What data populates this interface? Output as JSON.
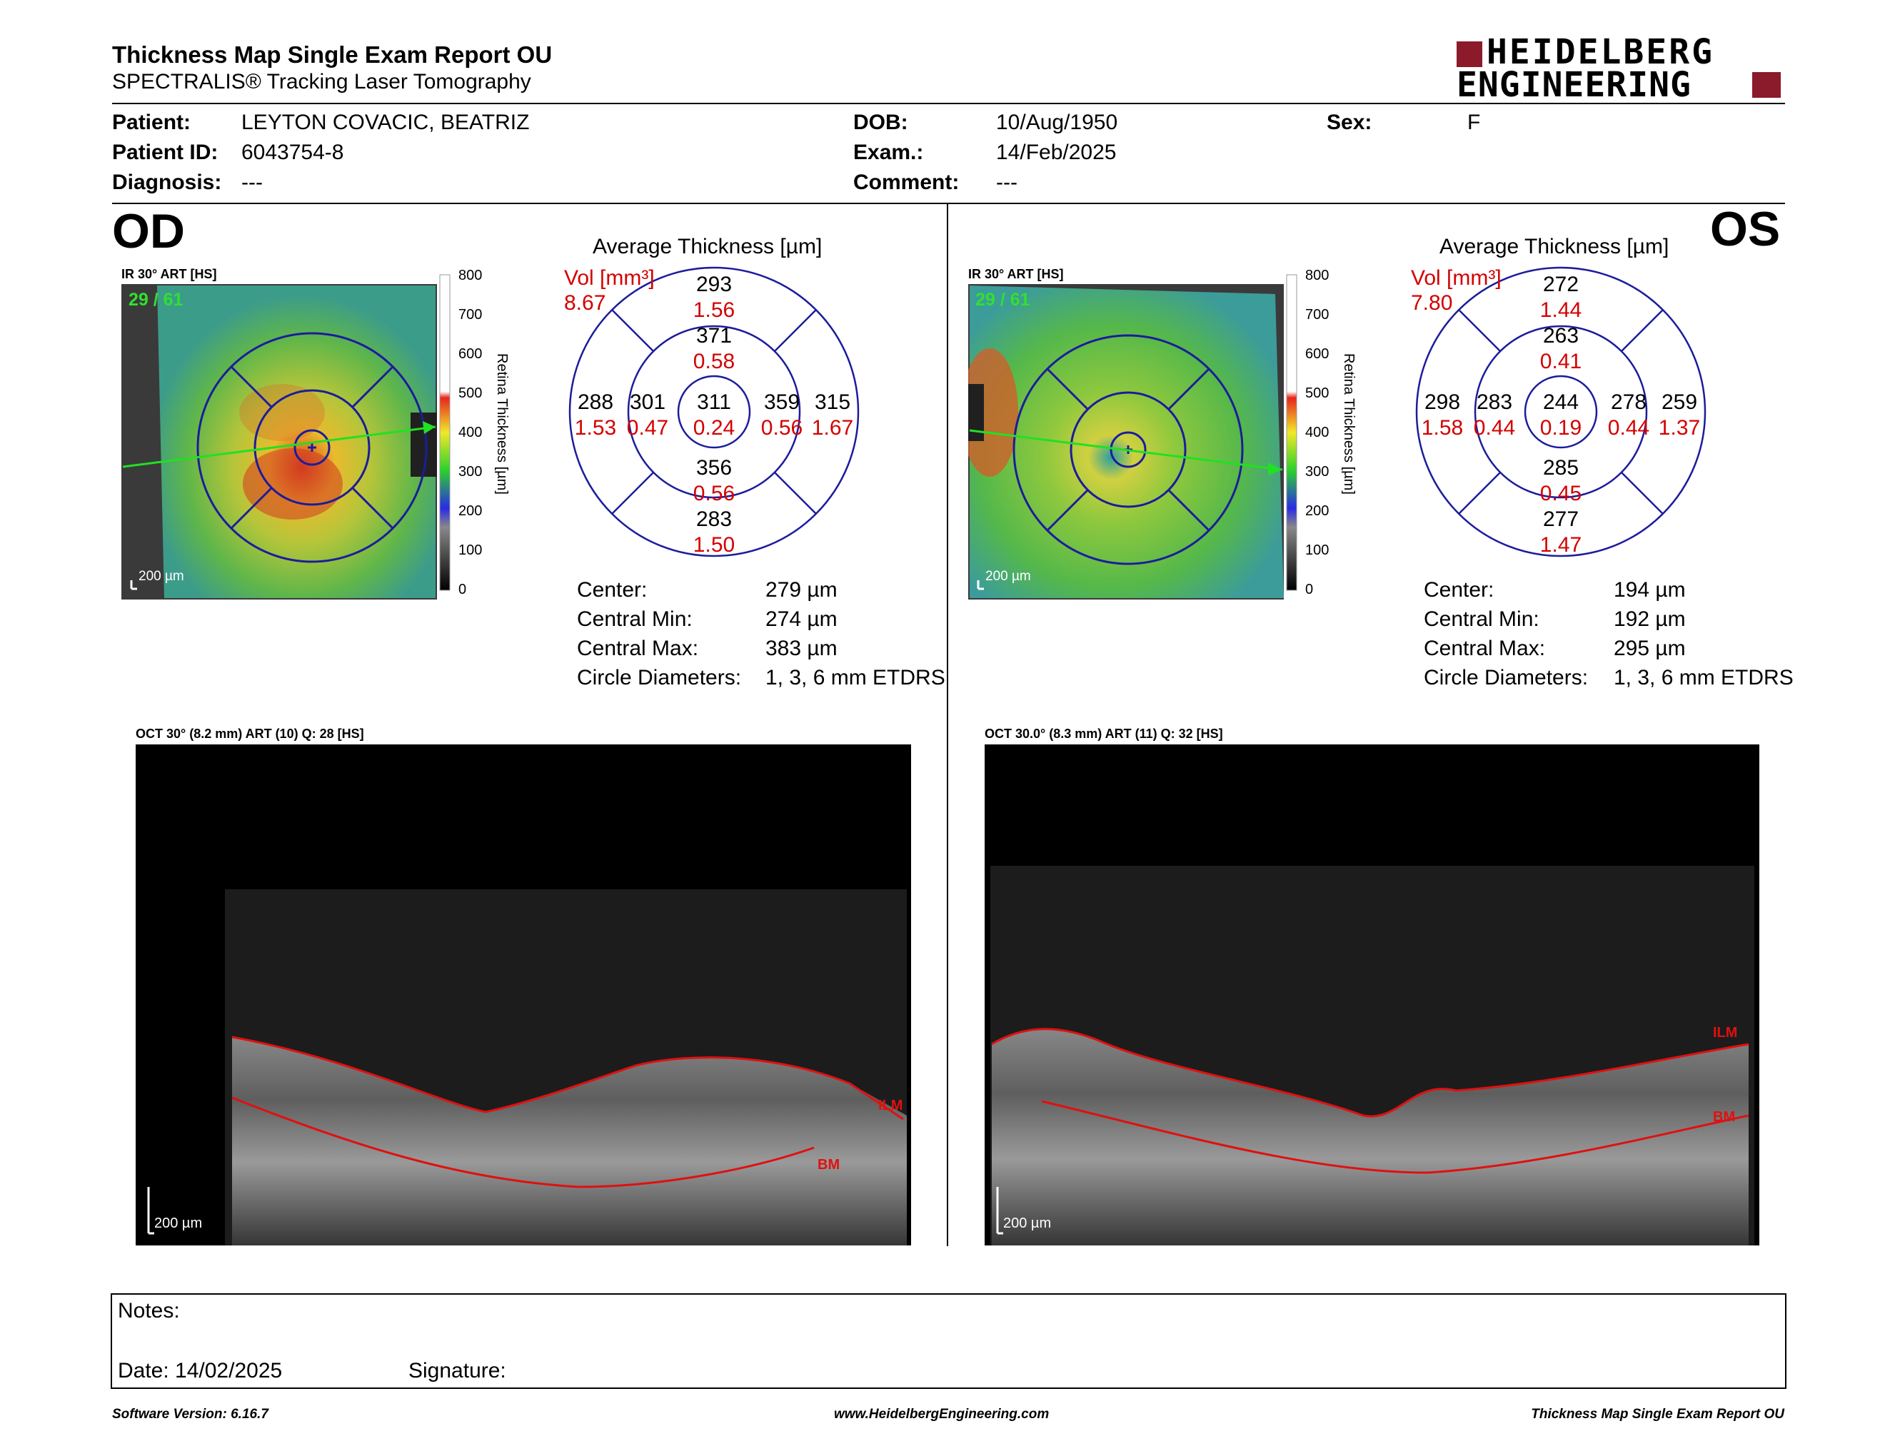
{
  "header": {
    "title": "Thickness Map Single Exam Report OU",
    "subtitle": "SPECTRALIS® Tracking Laser Tomography",
    "logo_line1": "HEIDELBERG",
    "logo_line2": "ENGINEERING"
  },
  "patient": {
    "patient_label": "Patient:",
    "patient_value": "LEYTON COVACIC, BEATRIZ",
    "id_label": "Patient ID:",
    "id_value": "6043754-8",
    "diagnosis_label": "Diagnosis:",
    "diagnosis_value": "---",
    "dob_label": "DOB:",
    "dob_value": "10/Aug/1950",
    "exam_label": "Exam.:",
    "exam_value": "14/Feb/2025",
    "comment_label": "Comment:",
    "comment_value": "---",
    "sex_label": "Sex:",
    "sex_value": "F"
  },
  "colorbar": {
    "ticks": [
      "800",
      "700",
      "600",
      "500",
      "400",
      "300",
      "200",
      "100",
      "0"
    ],
    "label": "Retina Thickness [µm]",
    "colors": [
      "#ffffff",
      "#ffffff",
      "#ffffff",
      "#e8261c",
      "#f2e82a",
      "#2bd12b",
      "#2a2ae8",
      "#888888",
      "#000000"
    ]
  },
  "od": {
    "eye": "OD",
    "ir_label": "IR 30° ART [HS]",
    "frame_count": "29 / 61",
    "scale": "200 µm",
    "avg_title": "Average Thickness [µm]",
    "vol_label": "Vol [mm³]",
    "vol_total": "8.67",
    "grid": {
      "center": {
        "t": "311",
        "v": "0.24"
      },
      "inner_sup": {
        "t": "371",
        "v": "0.58"
      },
      "inner_inf": {
        "t": "356",
        "v": "0.56"
      },
      "inner_tem": {
        "t": "301",
        "v": "0.47"
      },
      "inner_nas": {
        "t": "359",
        "v": "0.56"
      },
      "outer_sup": {
        "t": "293",
        "v": "1.56"
      },
      "outer_inf": {
        "t": "283",
        "v": "1.50"
      },
      "outer_tem": {
        "t": "288",
        "v": "1.53"
      },
      "outer_nas": {
        "t": "315",
        "v": "1.67"
      }
    },
    "stats": {
      "center_label": "Center:",
      "center_value": "279 µm",
      "min_label": "Central Min:",
      "min_value": "274 µm",
      "max_label": "Central Max:",
      "max_value": "383 µm",
      "diam_label": "Circle Diameters:",
      "diam_value": "1, 3, 6 mm ETDRS"
    },
    "oct_label": "OCT 30° (8.2 mm) ART (10) Q: 28 [HS]",
    "oct_scale": "200 µm",
    "ilm": "ILM",
    "bm": "BM"
  },
  "os": {
    "eye": "OS",
    "ir_label": "IR 30° ART [HS]",
    "frame_count": "29 / 61",
    "scale": "200 µm",
    "avg_title": "Average Thickness [µm]",
    "vol_label": "Vol [mm³]",
    "vol_total": "7.80",
    "grid": {
      "center": {
        "t": "244",
        "v": "0.19"
      },
      "inner_sup": {
        "t": "263",
        "v": "0.41"
      },
      "inner_inf": {
        "t": "285",
        "v": "0.45"
      },
      "inner_tem": {
        "t": "283",
        "v": "0.44"
      },
      "inner_nas": {
        "t": "278",
        "v": "0.44"
      },
      "outer_sup": {
        "t": "272",
        "v": "1.44"
      },
      "outer_inf": {
        "t": "277",
        "v": "1.47"
      },
      "outer_tem": {
        "t": "298",
        "v": "1.58"
      },
      "outer_nas": {
        "t": "259",
        "v": "1.37"
      }
    },
    "stats": {
      "center_label": "Center:",
      "center_value": "194 µm",
      "min_label": "Central Min:",
      "min_value": "192 µm",
      "max_label": "Central Max:",
      "max_value": "295 µm",
      "diam_label": "Circle Diameters:",
      "diam_value": "1, 3, 6 mm ETDRS"
    },
    "oct_label": "OCT 30.0° (8.3 mm) ART (11) Q: 32 [HS]",
    "oct_scale": "200 µm",
    "ilm": "ILM",
    "bm": "BM"
  },
  "notes": {
    "notes_label": "Notes:",
    "date_label": "Date: 14/02/2025",
    "signature_label": "Signature:"
  },
  "footer": {
    "software": "Software Version: 6.16.7",
    "website": "www.HeidelbergEngineering.com",
    "report": "Thickness Map Single Exam Report OU"
  },
  "colors": {
    "accent_red": "#d40000",
    "logo_red": "#8b1a2b",
    "grid_blue": "#1c1c9c"
  }
}
